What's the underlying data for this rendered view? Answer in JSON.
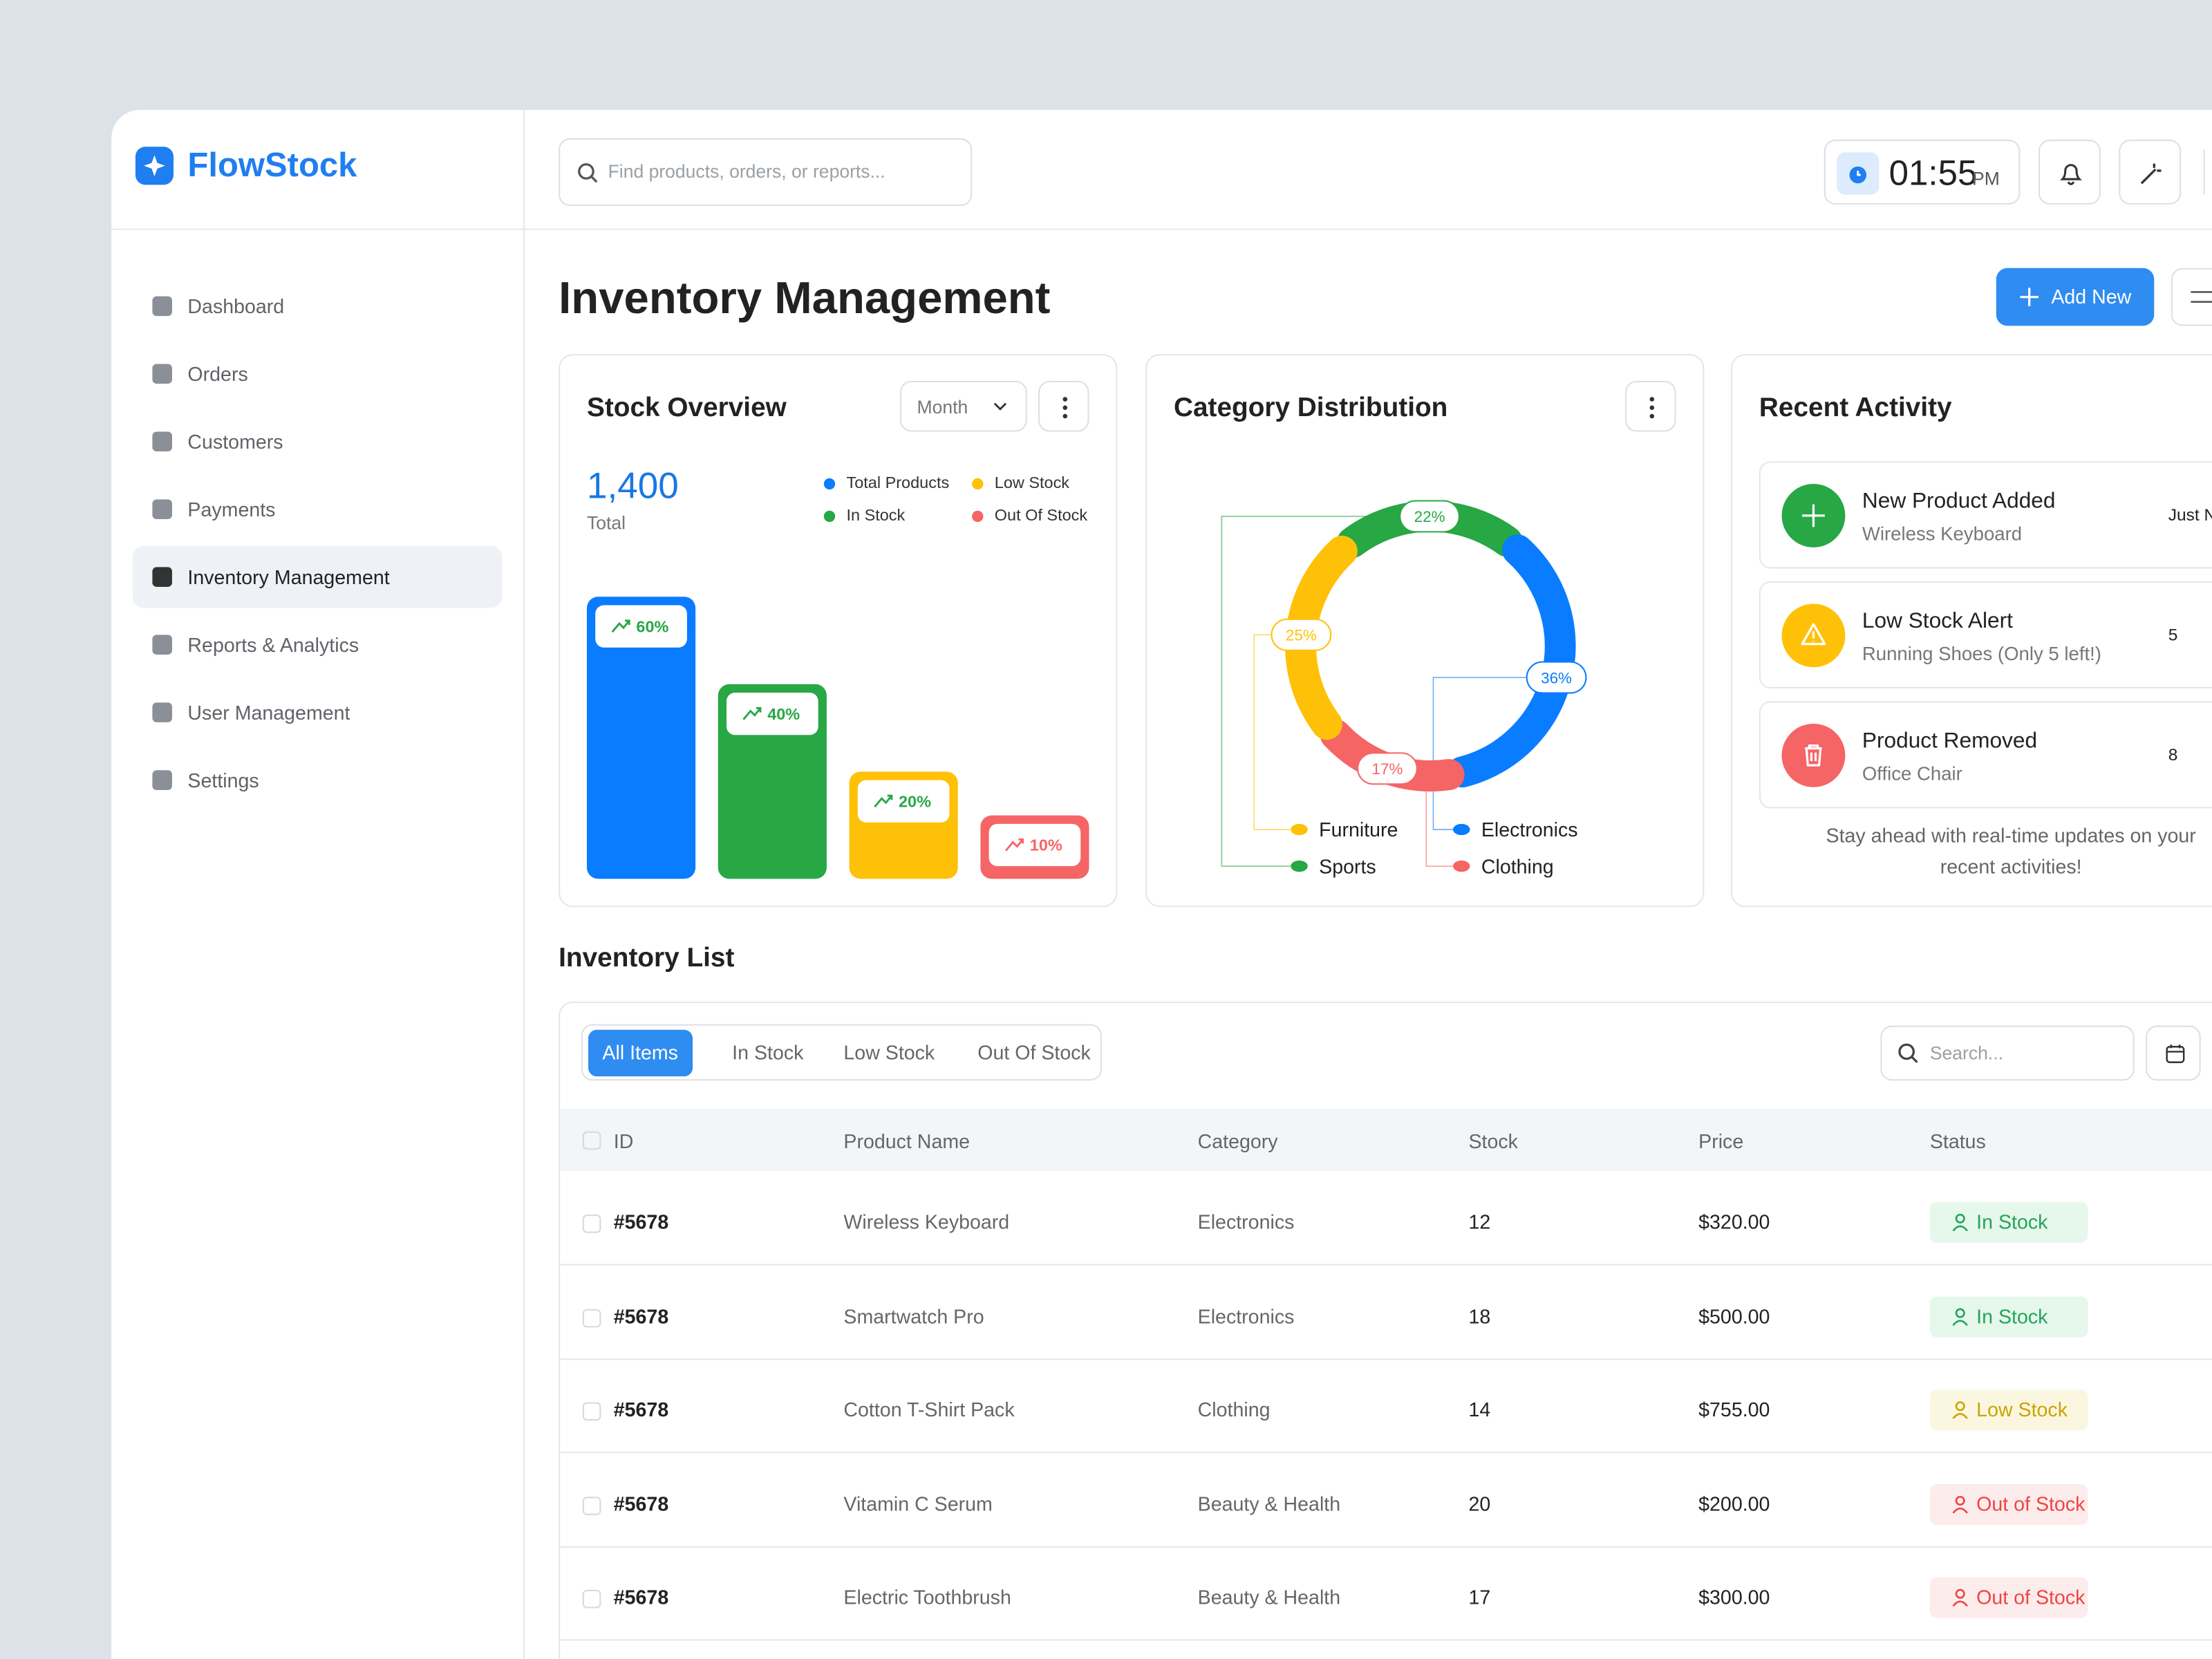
{
  "brand": "FlowStock",
  "search_placeholder": "Find products, orders, or reports...",
  "clock": {
    "time": "01:55",
    "period": "PM"
  },
  "nav": [
    "Dashboard",
    "Orders",
    "Customers",
    "Payments",
    "Inventory Management",
    "Reports & Analytics",
    "User Management",
    "Settings"
  ],
  "active_nav": 4,
  "page_title": "Inventory Management",
  "add_button": "Add New",
  "stock_overview": {
    "title": "Stock Overview",
    "period": "Month",
    "total": "1,400",
    "total_label": "Total",
    "legend": [
      {
        "name": "Total Products",
        "color": "#0a7cff"
      },
      {
        "name": "Low Stock",
        "color": "#ffc107"
      },
      {
        "name": "In Stock",
        "color": "#28a745"
      },
      {
        "name": "Out Of Stock",
        "color": "#f56565"
      }
    ],
    "bars": [
      {
        "value": 60,
        "label": "60%",
        "color": "#0a7cff",
        "label_color": "#28a745"
      },
      {
        "value": 40,
        "label": "40%",
        "color": "#28a745",
        "label_color": "#28a745"
      },
      {
        "value": 20,
        "label": "20%",
        "color": "#ffc107",
        "label_color": "#28a745"
      },
      {
        "value": 10,
        "label": "10%",
        "color": "#f56565",
        "label_color": "#f56565"
      }
    ]
  },
  "category_distribution": {
    "title": "Category Distribution",
    "segments": [
      {
        "name": "Sports",
        "value": 22,
        "label": "22%",
        "color": "#28a745"
      },
      {
        "name": "Electronics",
        "value": 36,
        "label": "36%",
        "color": "#0a7cff"
      },
      {
        "name": "Clothing",
        "value": 17,
        "label": "17%",
        "color": "#f56565"
      },
      {
        "name": "Furniture",
        "value": 25,
        "label": "25%",
        "color": "#ffc107"
      }
    ]
  },
  "recent_activity": {
    "title": "Recent Activity",
    "items": [
      {
        "title": "New Product Added",
        "subtitle": "Wireless Keyboard",
        "time": "Just N",
        "color": "#28a745"
      },
      {
        "title": "Low Stock Alert",
        "subtitle": "Running Shoes (Only 5 left!)",
        "time": "5",
        "color": "#ffc107"
      },
      {
        "title": "Product Removed",
        "subtitle": "Office Chair",
        "time": "8",
        "color": "#f56565"
      }
    ],
    "note": "Stay ahead with real-time updates on your recent activities!"
  },
  "inventory": {
    "title": "Inventory List",
    "tabs": [
      "All Items",
      "In Stock",
      "Low Stock",
      "Out Of Stock"
    ],
    "active_tab": 0,
    "search_placeholder": "Search...",
    "columns": [
      "ID",
      "Product Name",
      "Category",
      "Stock",
      "Price",
      "Status"
    ],
    "rows": [
      {
        "id": "#5678",
        "name": "Wireless Keyboard",
        "category": "Electronics",
        "stock": "12",
        "price": "$320.00",
        "status": "In Stock",
        "status_color": "#22a55a",
        "status_bg": "#e6f7ec"
      },
      {
        "id": "#5678",
        "name": "Smartwatch Pro",
        "category": "Electronics",
        "stock": "18",
        "price": "$500.00",
        "status": "In Stock",
        "status_color": "#22a55a",
        "status_bg": "#e6f7ec"
      },
      {
        "id": "#5678",
        "name": "Cotton T-Shirt Pack",
        "category": "Clothing",
        "stock": "14",
        "price": "$755.00",
        "status": "Low Stock",
        "status_color": "#c9a500",
        "status_bg": "#fbf6e0"
      },
      {
        "id": "#5678",
        "name": "Vitamin C Serum",
        "category": "Beauty & Health",
        "stock": "20",
        "price": "$200.00",
        "status": "Out of Stock",
        "status_color": "#ef4444",
        "status_bg": "#fdecec"
      },
      {
        "id": "#5678",
        "name": "Electric Toothbrush",
        "category": "Beauty & Health",
        "stock": "17",
        "price": "$300.00",
        "status": "Out of Stock",
        "status_color": "#ef4444",
        "status_bg": "#fdecec"
      }
    ]
  }
}
